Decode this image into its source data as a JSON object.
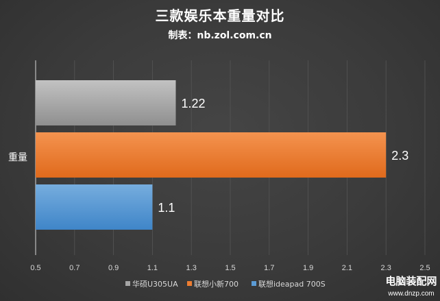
{
  "chart_data": {
    "type": "bar",
    "orientation": "horizontal",
    "title": "三款娱乐本重量对比",
    "subtitle": "制表：nb.zol.com.cn",
    "categories": [
      "重量"
    ],
    "series": [
      {
        "name": "华硕U305UA",
        "values": [
          1.22
        ],
        "color": "#a5a5a5"
      },
      {
        "name": "联想小新700",
        "values": [
          2.3
        ],
        "color": "#ed7d31"
      },
      {
        "name": "联想ideapad 700S",
        "values": [
          1.1
        ],
        "color": "#5b9bd5"
      }
    ],
    "xlim": [
      0.5,
      2.5
    ],
    "xticks": [
      0.5,
      0.7,
      0.9,
      1.1,
      1.3,
      1.5,
      1.7,
      1.9,
      2.1,
      2.3,
      2.5
    ],
    "data_labels": [
      "1.22",
      "2.3",
      "1.1"
    ],
    "legend_position": "bottom",
    "grid": true
  },
  "watermark": {
    "main": "电脑装配网",
    "sub": "www.dnzp.com"
  }
}
